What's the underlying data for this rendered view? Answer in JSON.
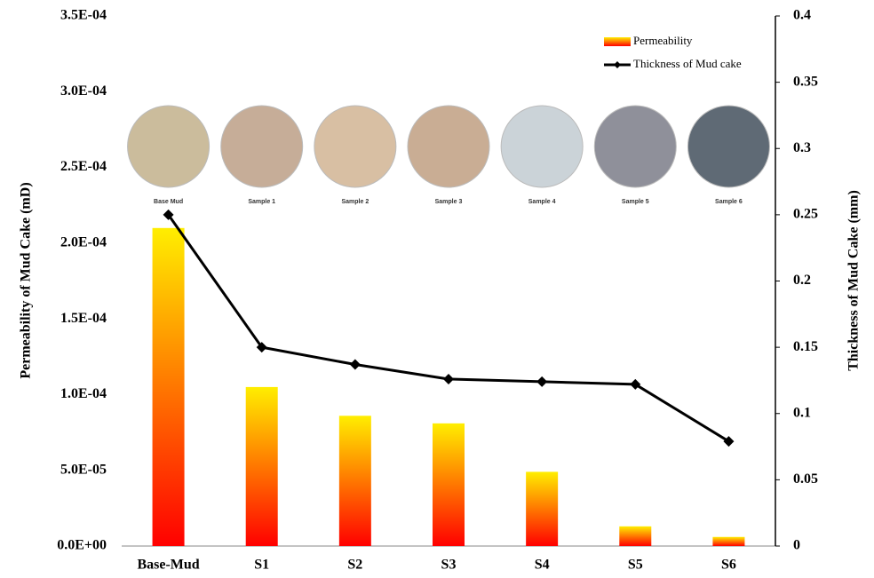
{
  "chart_data": {
    "type": "combo",
    "y_label": "Permeability of Mud Cake (mD)",
    "y2_label": "Thickness of Mud Cake (mm)",
    "categories": [
      "Base-Mud",
      "S1",
      "S2",
      "S3",
      "S4",
      "S5",
      "S6"
    ],
    "series": [
      {
        "name": "Permeability",
        "type": "bar",
        "color": [
          "#ffee00",
          "#ff0000"
        ],
        "values": [
          0.00021,
          0.000105,
          8.6e-05,
          8.1e-05,
          4.9e-05,
          1.3e-05,
          6e-06
        ]
      },
      {
        "name": "Thickness of Mud cake",
        "type": "line",
        "axis": "y2",
        "color": "#000000",
        "values": [
          0.25,
          0.15,
          0.137,
          0.126,
          0.124,
          0.122,
          0.079
        ]
      }
    ],
    "ylim": [
      0,
      0.00035
    ],
    "yticks": [
      {
        "value": 0,
        "label": "0.0E+00"
      },
      {
        "value": 5e-05,
        "label": "5.0E-05"
      },
      {
        "value": 0.0001,
        "label": "1.0E-04"
      },
      {
        "value": 0.00015,
        "label": "1.5E-04"
      },
      {
        "value": 0.0002,
        "label": "2.0E-04"
      },
      {
        "value": 0.00025,
        "label": "2.5E-04"
      },
      {
        "value": 0.0003,
        "label": "3.0E-04"
      },
      {
        "value": 0.00035,
        "label": "3.5E-04"
      }
    ],
    "y2lim": [
      0,
      0.4
    ],
    "y2ticks": [
      0,
      0.05,
      0.1,
      0.15,
      0.2,
      0.25,
      0.3,
      0.35,
      0.4
    ],
    "legend": "top-right",
    "samples": [
      {
        "label": "Base Mud",
        "color": "#cbbc9c"
      },
      {
        "label": "Sample 1",
        "color": "#c6ad98"
      },
      {
        "label": "Sample 2",
        "color": "#d8bfa3"
      },
      {
        "label": "Sample 3",
        "color": "#c9ad94"
      },
      {
        "label": "Sample 4",
        "color": "#cbd3d8"
      },
      {
        "label": "Sample 5",
        "color": "#8f909a"
      },
      {
        "label": "Sample 6",
        "color": "#5f6a75"
      }
    ]
  }
}
